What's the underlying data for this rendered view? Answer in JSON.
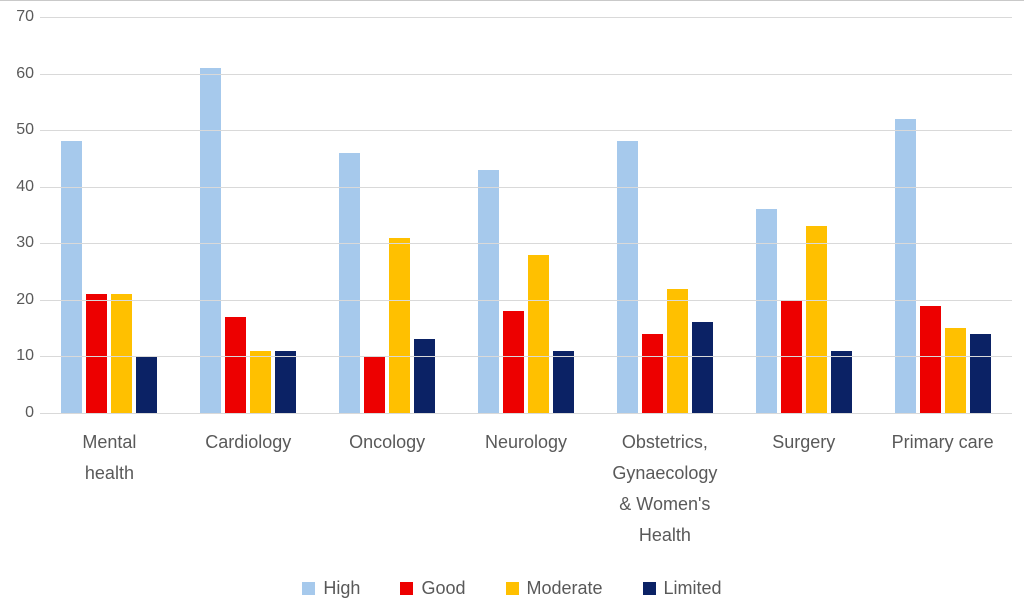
{
  "chart_data": {
    "type": "bar",
    "title": "",
    "xlabel": "",
    "ylabel": "",
    "categories": [
      "Mental health",
      "Cardiology",
      "Oncology",
      "Neurology",
      "Obstetrics, Gynaecology & Women's Health",
      "Surgery",
      "Primary care"
    ],
    "category_label_lines": [
      [
        "Mental",
        "health"
      ],
      [
        "Cardiology"
      ],
      [
        "Oncology"
      ],
      [
        "Neurology"
      ],
      [
        "Obstetrics,",
        "Gynaecology",
        "& Women's",
        "Health"
      ],
      [
        "Surgery"
      ],
      [
        "Primary care"
      ]
    ],
    "series": [
      {
        "name": "High",
        "color": "#A6C9EC",
        "values": [
          48,
          61,
          46,
          43,
          48,
          36,
          52
        ]
      },
      {
        "name": "Good",
        "color": "#ED0000",
        "values": [
          21,
          17,
          10,
          18,
          14,
          20,
          19
        ]
      },
      {
        "name": "Moderate",
        "color": "#FFC000",
        "values": [
          21,
          11,
          31,
          28,
          22,
          33,
          15
        ]
      },
      {
        "name": "Limited",
        "color": "#0B2265",
        "values": [
          10,
          11,
          13,
          11,
          16,
          11,
          14
        ]
      }
    ],
    "ylim": [
      0,
      70
    ],
    "ytick_step": 10,
    "ytick_labels": [
      "0",
      "10",
      "20",
      "30",
      "40",
      "50",
      "60",
      "70"
    ],
    "grid": true,
    "gridline_color": "#D9D9D9",
    "axis_label_color": "#595959",
    "legend_position": "bottom"
  }
}
